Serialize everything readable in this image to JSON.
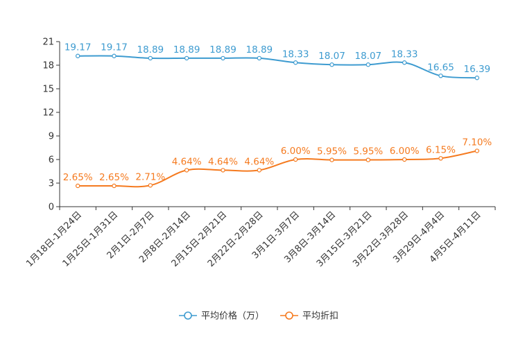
{
  "chart_data": {
    "type": "line",
    "title": "",
    "xlabel": "",
    "ylabel": "",
    "ylim": [
      0,
      21
    ],
    "yticks": [
      0,
      3,
      6,
      9,
      12,
      15,
      18,
      21
    ],
    "grid": false,
    "legend_position": "bottom",
    "categories": [
      "1月18日-1月24日",
      "1月25日-1月31日",
      "2月1日-2月7日",
      "2月8日-2月14日",
      "2月15日-2月21日",
      "2月22日-2月28日",
      "3月1日-3月7日",
      "3月8日-3月14日",
      "3月15日-3月21日",
      "3月22日-3月28日",
      "3月29日-4月4日",
      "4月5日-4月11日"
    ],
    "series": [
      {
        "name": "平均价格（万）",
        "color": "#3d9bd0",
        "values": [
          19.17,
          19.17,
          18.89,
          18.89,
          18.89,
          18.89,
          18.33,
          18.07,
          18.07,
          18.33,
          16.65,
          16.39
        ],
        "labels": [
          "19.17",
          "19.17",
          "18.89",
          "18.89",
          "18.89",
          "18.89",
          "18.33",
          "18.07",
          "18.07",
          "18.33",
          "16.65",
          "16.39"
        ]
      },
      {
        "name": "平均折扣",
        "color": "#f57a1f",
        "values": [
          2.65,
          2.65,
          2.71,
          4.64,
          4.64,
          4.64,
          6.0,
          5.95,
          5.95,
          6.0,
          6.15,
          7.1
        ],
        "labels": [
          "2.65%",
          "2.65%",
          "2.71%",
          "4.64%",
          "4.64%",
          "4.64%",
          "6.00%",
          "5.95%",
          "5.95%",
          "6.00%",
          "6.15%",
          "7.10%"
        ]
      }
    ]
  }
}
